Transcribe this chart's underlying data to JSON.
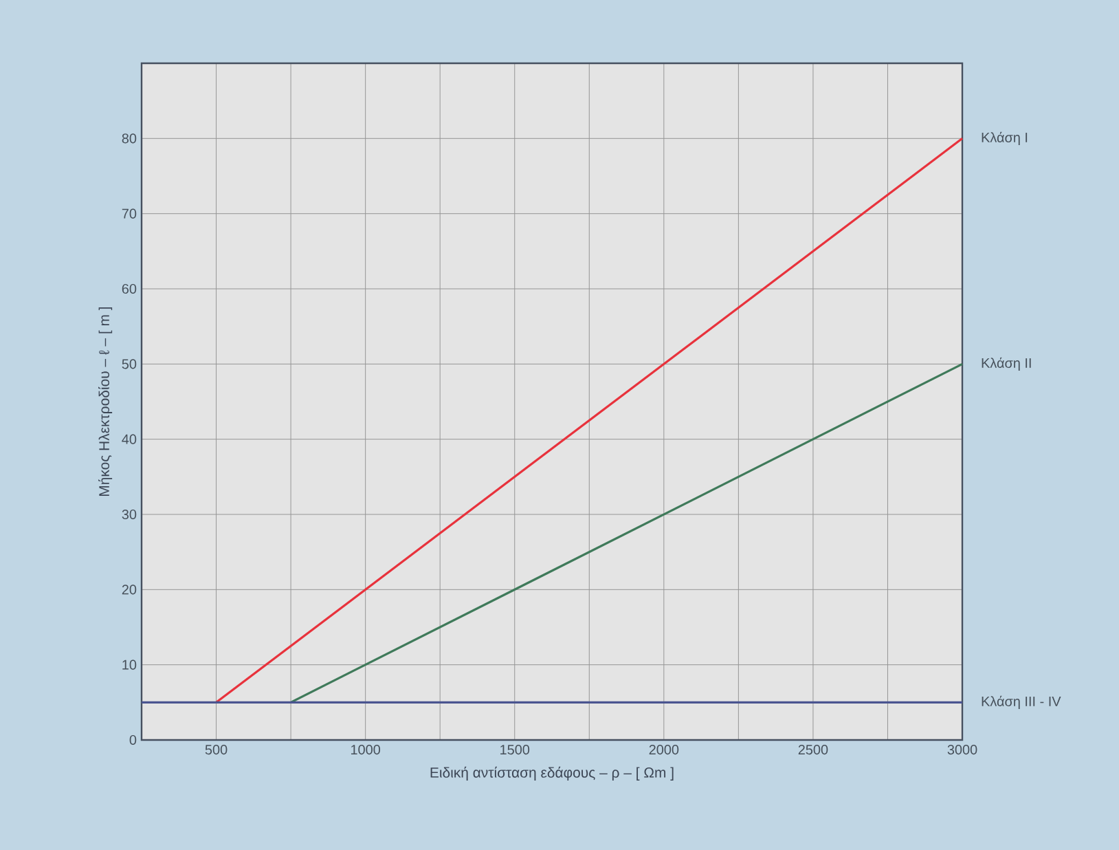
{
  "chart_data": {
    "type": "line",
    "xlabel": "Ειδική αντίσταση εδάφους – ρ – [ Ωm ]",
    "ylabel": "Μήκος Ηλεκτροδίου   – ℓ – [ m ]",
    "xlim": [
      250,
      3000
    ],
    "ylim": [
      0,
      90
    ],
    "xticks": [
      {
        "value": 250,
        "label": null
      },
      500,
      {
        "value": 750,
        "label": null
      },
      1000,
      {
        "value": 1250,
        "label": null
      },
      1500,
      {
        "value": 1750,
        "label": null
      },
      2000,
      {
        "value": 2250,
        "label": null
      },
      2500,
      {
        "value": 2750,
        "label": null
      },
      3000
    ],
    "yticks": [
      0,
      10,
      20,
      30,
      40,
      50,
      60,
      70,
      80
    ],
    "grid": true,
    "legend": false,
    "marker": "none",
    "line_style": "solid",
    "series": [
      {
        "name": "Κλάση I",
        "color": "#e8323c",
        "x": [
          500,
          3000
        ],
        "values": [
          5,
          80
        ]
      },
      {
        "name": "Κλάση II",
        "color": "#3f7a5a",
        "x": [
          750,
          3000
        ],
        "values": [
          5,
          50
        ]
      },
      {
        "name": "Κλάση III - IV",
        "color": "#4a5590",
        "x": [
          250,
          3000
        ],
        "values": [
          5,
          5
        ]
      }
    ]
  }
}
